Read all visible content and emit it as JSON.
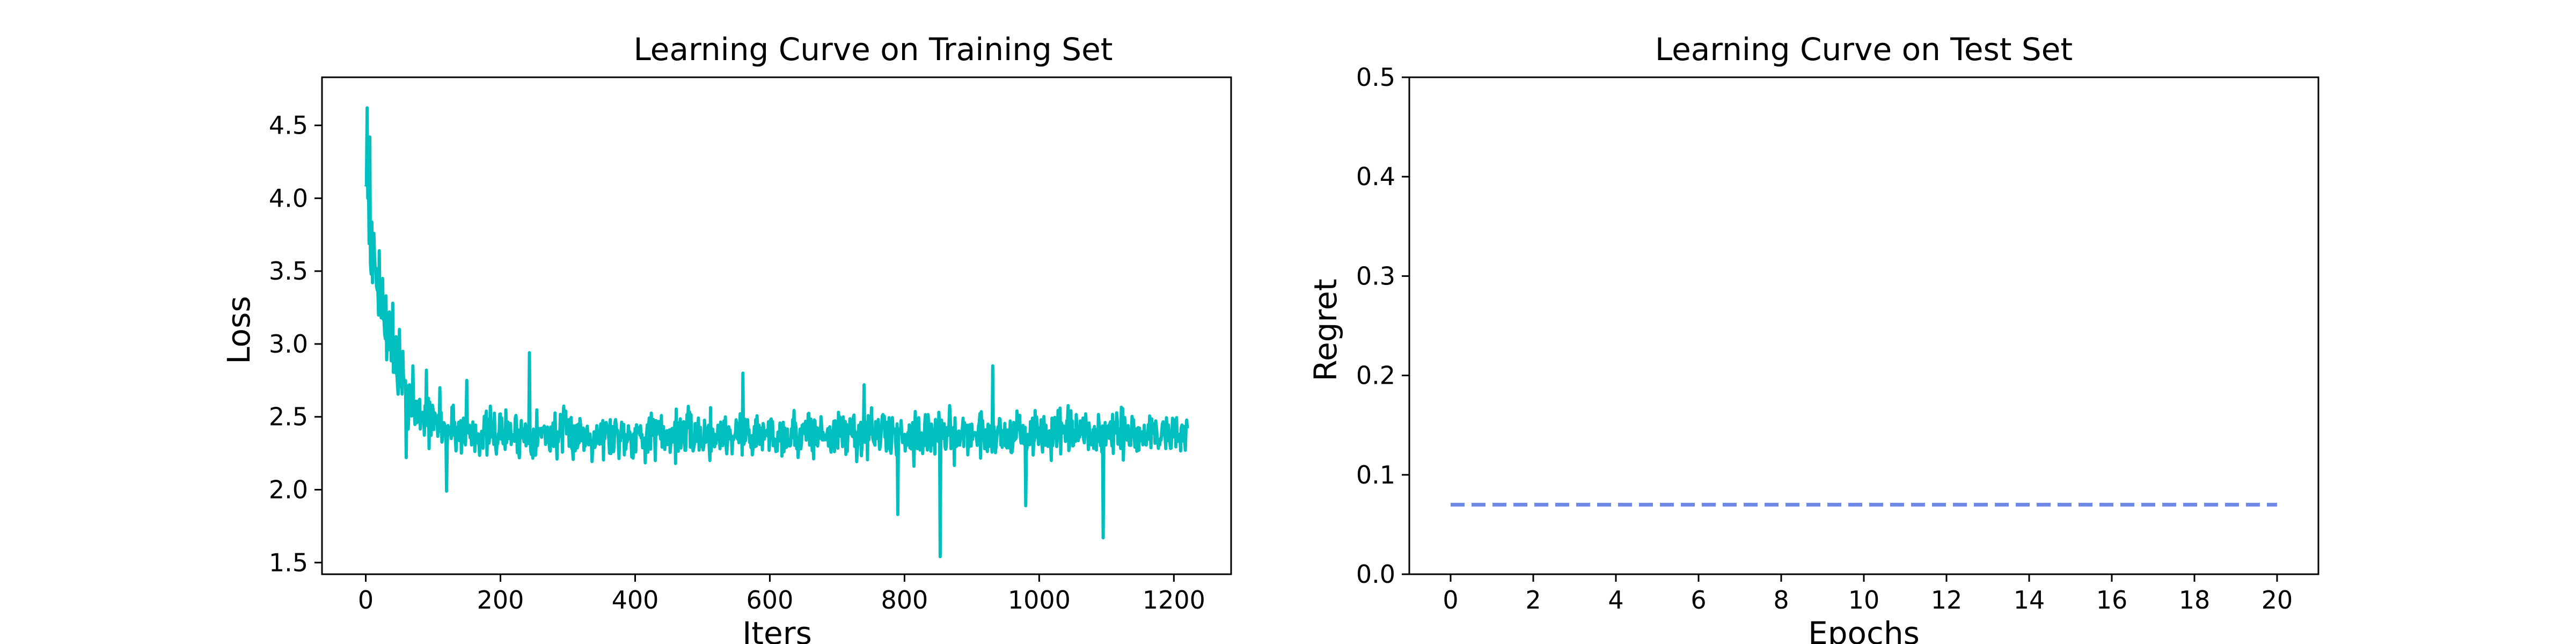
{
  "figure": {
    "background": "#ffffff"
  },
  "chart_data": [
    {
      "type": "line",
      "title": "Learning Curve on Training Set",
      "xlabel": "Iters",
      "ylabel": "Loss",
      "xlim": [
        -65,
        1285
      ],
      "ylim": [
        1.42,
        4.83
      ],
      "xticks": [
        0,
        200,
        400,
        600,
        800,
        1000,
        1200
      ],
      "xtick_labels": [
        "0",
        "200",
        "400",
        "600",
        "800",
        "1000",
        "1200"
      ],
      "yticks": [
        1.5,
        2.0,
        2.5,
        3.0,
        3.5,
        4.0,
        4.5
      ],
      "ytick_labels": [
        "1.5",
        "2.0",
        "2.5",
        "3.0",
        "3.5",
        "4.0",
        "4.5"
      ],
      "grid": false,
      "series": [
        {
          "color": "#00bfbf",
          "line_style": "solid",
          "generated_noise": {
            "n_points": 1221,
            "base": 2.38,
            "start": 4.1,
            "decay_iters": 32,
            "noise": 0.1,
            "seed": 7
          },
          "points": [
            [
              0,
              4.08
            ],
            [
              2,
              4.62
            ],
            [
              4,
              4.12
            ],
            [
              6,
              4.42
            ],
            [
              7,
              3.55
            ],
            [
              8,
              3.48
            ],
            [
              10,
              3.42
            ],
            [
              12,
              3.76
            ],
            [
              15,
              3.52
            ],
            [
              20,
              3.64
            ],
            [
              25,
              3.45
            ],
            [
              30,
              3.33
            ],
            [
              35,
              3.22
            ],
            [
              40,
              3.28
            ],
            [
              45,
              3.05
            ],
            [
              50,
              3.1
            ],
            [
              55,
              2.95
            ],
            [
              60,
              2.22
            ],
            [
              65,
              2.72
            ],
            [
              70,
              2.85
            ],
            [
              80,
              2.62
            ],
            [
              90,
              2.82
            ],
            [
              100,
              2.55
            ],
            [
              110,
              2.7
            ],
            [
              120,
              1.99
            ],
            [
              130,
              2.58
            ],
            [
              150,
              2.75
            ],
            [
              170,
              2.35
            ],
            [
              200,
              2.52
            ],
            [
              230,
              2.38
            ],
            [
              243,
              2.94
            ],
            [
              260,
              2.42
            ],
            [
              300,
              2.45
            ],
            [
              350,
              2.35
            ],
            [
              400,
              2.42
            ],
            [
              430,
              2.2
            ],
            [
              450,
              2.38
            ],
            [
              500,
              2.32
            ],
            [
              550,
              2.48
            ],
            [
              560,
              2.8
            ],
            [
              580,
              2.3
            ],
            [
              600,
              2.35
            ],
            [
              650,
              2.45
            ],
            [
              700,
              2.32
            ],
            [
              740,
              2.72
            ],
            [
              790,
              1.83
            ],
            [
              800,
              2.38
            ],
            [
              853,
              1.54
            ],
            [
              860,
              2.3
            ],
            [
              900,
              2.45
            ],
            [
              931,
              2.85
            ],
            [
              950,
              2.3
            ],
            [
              980,
              1.89
            ],
            [
              1000,
              2.42
            ],
            [
              1050,
              2.3
            ],
            [
              1095,
              1.67
            ],
            [
              1100,
              2.4
            ],
            [
              1150,
              2.35
            ],
            [
              1200,
              2.45
            ],
            [
              1220,
              2.42
            ]
          ]
        }
      ]
    },
    {
      "type": "line",
      "title": "Learning Curve on Test Set",
      "xlabel": "Epochs",
      "ylabel": "Regret",
      "xlim": [
        -1,
        21
      ],
      "ylim": [
        0.0,
        0.5
      ],
      "xticks": [
        0,
        2,
        4,
        6,
        8,
        10,
        12,
        14,
        16,
        18,
        20
      ],
      "xtick_labels": [
        "0",
        "2",
        "4",
        "6",
        "8",
        "10",
        "12",
        "14",
        "16",
        "18",
        "20"
      ],
      "yticks": [
        0.0,
        0.1,
        0.2,
        0.3,
        0.4,
        0.5
      ],
      "ytick_labels": [
        "0.0",
        "0.1",
        "0.2",
        "0.3",
        "0.4",
        "0.5"
      ],
      "grid": false,
      "series": [
        {
          "color": "#6f8ae6",
          "line_style": "dashed",
          "x": [
            0,
            1,
            2,
            3,
            4,
            5,
            6,
            7,
            8,
            9,
            10,
            11,
            12,
            13,
            14,
            15,
            16,
            17,
            18,
            19,
            20
          ],
          "y": [
            0.07,
            0.07,
            0.07,
            0.07,
            0.07,
            0.07,
            0.07,
            0.07,
            0.07,
            0.07,
            0.07,
            0.07,
            0.07,
            0.07,
            0.07,
            0.07,
            0.07,
            0.07,
            0.07,
            0.07,
            0.07
          ]
        }
      ]
    }
  ]
}
